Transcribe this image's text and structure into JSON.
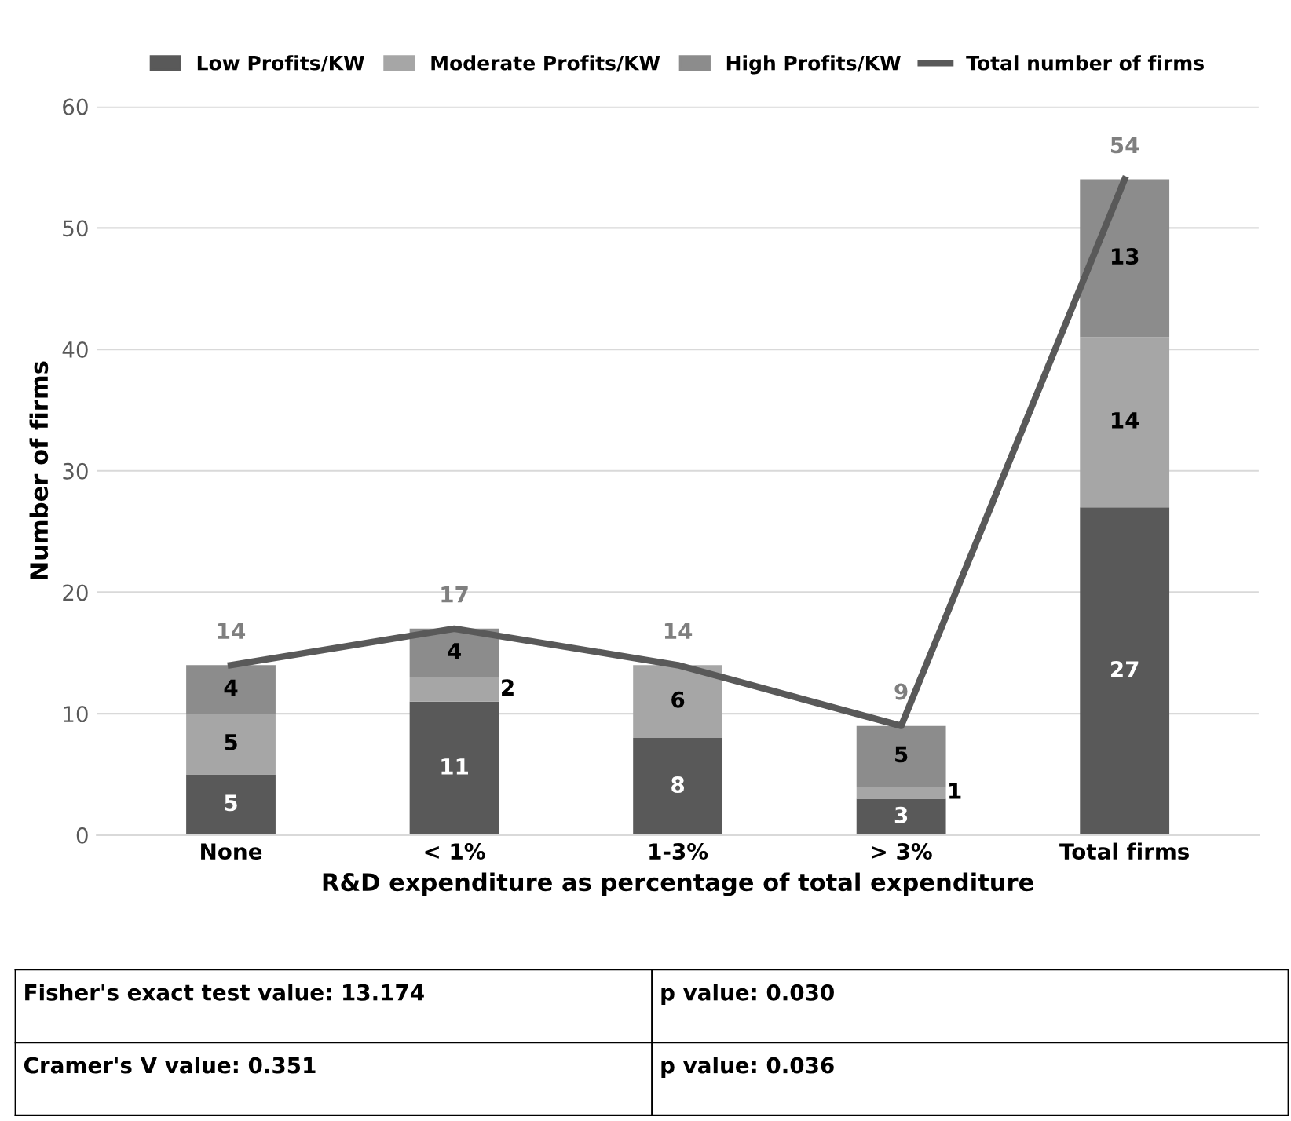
{
  "chart_data": {
    "type": "bar",
    "stacked": true,
    "xlabel": "R&D expenditure as percentage of total expenditure",
    "ylabel": "Number of firms",
    "categories": [
      "None",
      "< 1%",
      "1-3%",
      "> 3%",
      "Total firms"
    ],
    "series": [
      {
        "name": "Low Profits/KW",
        "color": "#595959",
        "values": [
          5,
          11,
          8,
          3,
          27
        ],
        "value_labels": [
          "5",
          "11",
          "8",
          "3",
          "27"
        ]
      },
      {
        "name": "Moderate Profits/KW",
        "color": "#a6a6a6",
        "values": [
          5,
          2,
          6,
          1,
          14
        ],
        "value_labels": [
          "5",
          "2",
          "6",
          "1",
          "14"
        ]
      },
      {
        "name": "High Profits/KW",
        "color": "#8c8c8c",
        "values": [
          4,
          4,
          0,
          5,
          13
        ],
        "value_labels": [
          "4",
          "4",
          null,
          "5",
          "13"
        ]
      },
      {
        "name": "Total number of firms",
        "type": "line",
        "color": "#595959",
        "values": [
          14,
          17,
          14,
          9,
          54
        ],
        "value_labels": [
          "14",
          "17",
          "14",
          "9",
          "54"
        ]
      }
    ],
    "ylim": [
      0,
      60
    ],
    "yticks": [
      0,
      10,
      20,
      30,
      40,
      50,
      60
    ],
    "grid": "y",
    "legend": "top",
    "marker": "none",
    "line_style": "solid",
    "annotations": [
      "Fisher's exact test value: 13.174",
      "p value: 0.030",
      "Cramer's V value: 0.351",
      "p value: 0.036"
    ]
  }
}
